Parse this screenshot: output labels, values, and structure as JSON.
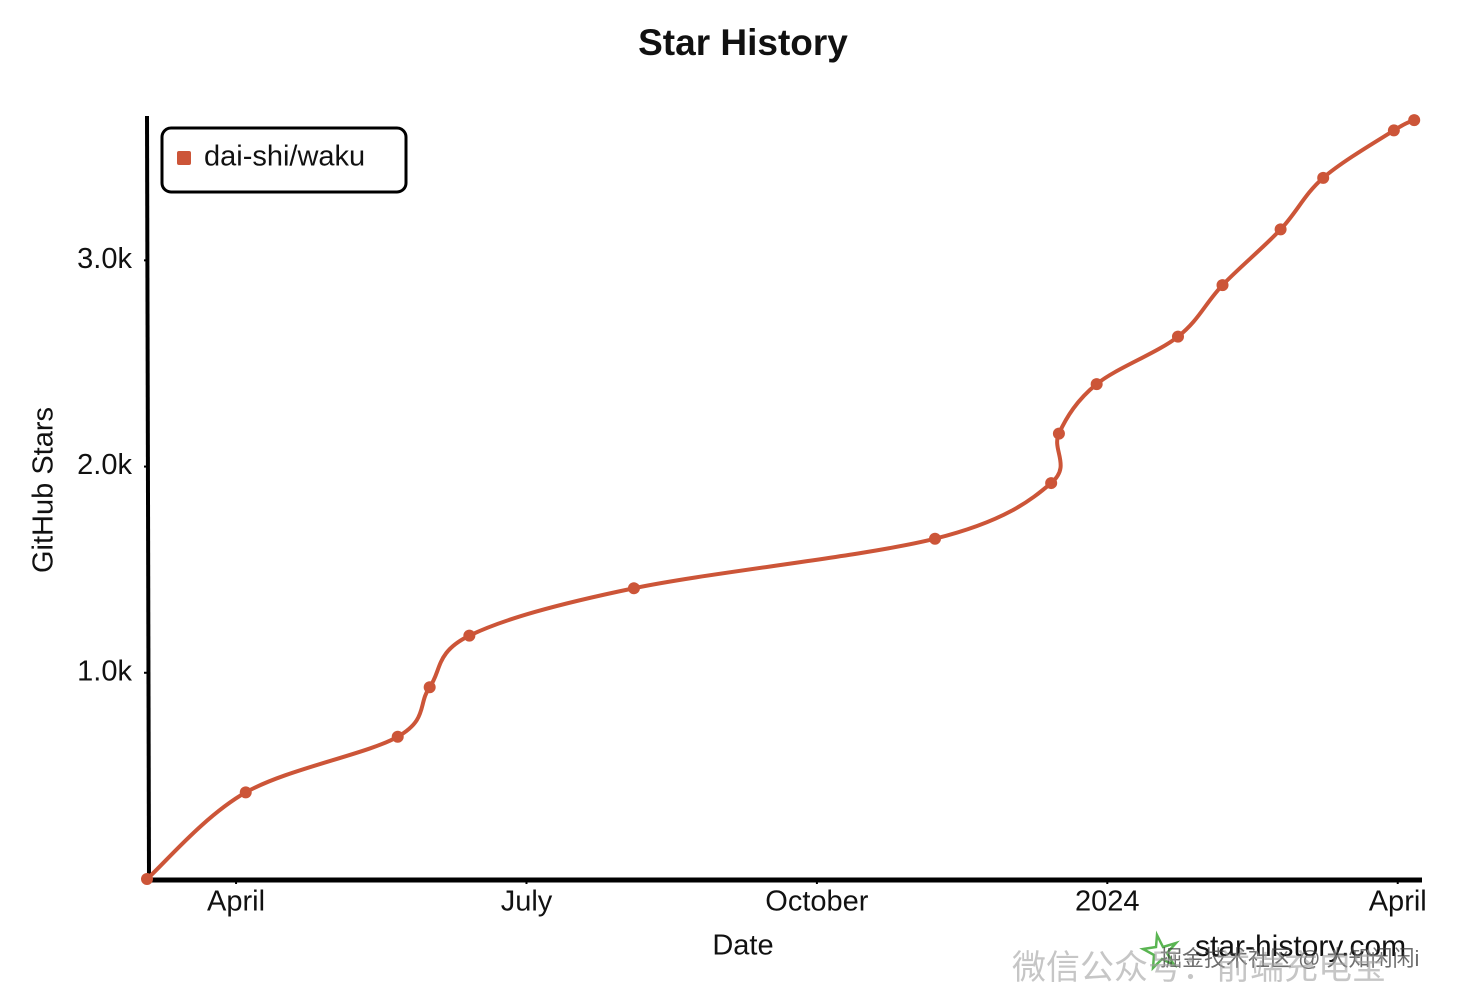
{
  "chart_data": {
    "type": "line",
    "title": "Star History",
    "x_label": "Date",
    "y_label": "GitHub Stars",
    "x": [
      3.08,
      4.1,
      5.67,
      6.0,
      6.41,
      8.11,
      11.22,
      12.42,
      12.5,
      12.89,
      13.73,
      14.19,
      14.79,
      15.23,
      15.96,
      16.17
    ],
    "series": [
      {
        "name": "dai-shi/waku",
        "color": "#cc5538",
        "values": [
          0,
          420,
          690,
          930,
          1180,
          1410,
          1650,
          1920,
          2160,
          2400,
          2630,
          2880,
          3150,
          3400,
          3630,
          3680
        ]
      }
    ],
    "xlim": [
      3.08,
      16.23
    ],
    "ylim": [
      0,
      3700
    ],
    "xticks": [
      {
        "value": 4,
        "label": "April"
      },
      {
        "value": 7,
        "label": "July"
      },
      {
        "value": 10,
        "label": "October"
      },
      {
        "value": 13,
        "label": "2024"
      },
      {
        "value": 16,
        "label": "April"
      }
    ],
    "yticks": [
      {
        "value": 1000,
        "label": "1.0k"
      },
      {
        "value": 2000,
        "label": "2.0k"
      },
      {
        "value": 3000,
        "label": "3.0k"
      }
    ],
    "legend": "top-left",
    "source": "star-history.com",
    "watermarks": [
      "掘金技术社区 @ 大知闲闲i",
      "微信公众号：前端充电宝"
    ]
  }
}
